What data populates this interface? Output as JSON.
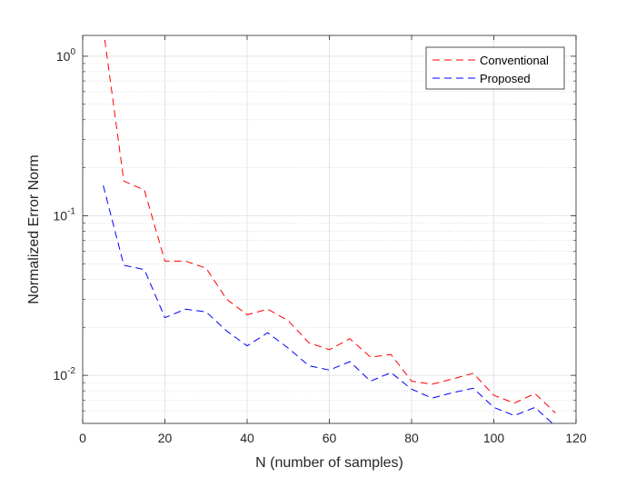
{
  "chart_data": {
    "type": "line",
    "title": "",
    "xlabel": "N (number of samples)",
    "ylabel": "Normalized Error Norm",
    "xlim": [
      0,
      120
    ],
    "ylim": [
      0.005,
      1.35
    ],
    "yscale": "log",
    "grid": true,
    "minor_grid": true,
    "legend_position": "top-right",
    "xticks": [
      0,
      20,
      40,
      60,
      80,
      100,
      120
    ],
    "xtick_labels": [
      "0",
      "20",
      "40",
      "60",
      "80",
      "100",
      "120"
    ],
    "yticks": [
      0.01,
      0.1,
      1
    ],
    "ytick_labels": [
      {
        "base": "10",
        "exp": "-2"
      },
      {
        "base": "10",
        "exp": "-1"
      },
      {
        "base": "10",
        "exp": "0"
      }
    ],
    "series": [
      {
        "name": "Conventional",
        "color": "#ff0000",
        "linestyle": "dashed",
        "x": [
          5,
          10,
          15,
          20,
          25,
          30,
          35,
          40,
          45,
          50,
          55,
          60,
          65,
          70,
          75,
          80,
          85,
          90,
          95,
          100,
          105,
          110,
          115
        ],
        "y": [
          1.5,
          0.165,
          0.145,
          0.052,
          0.052,
          0.047,
          0.03,
          0.024,
          0.026,
          0.022,
          0.016,
          0.0145,
          0.017,
          0.013,
          0.0135,
          0.0092,
          0.0088,
          0.0095,
          0.0103,
          0.0075,
          0.0067,
          0.0077,
          0.0058
        ]
      },
      {
        "name": "Proposed",
        "color": "#0000ff",
        "linestyle": "dashed",
        "x": [
          5,
          10,
          15,
          20,
          25,
          30,
          35,
          40,
          45,
          50,
          55,
          60,
          65,
          70,
          75,
          80,
          85,
          90,
          95,
          100,
          105,
          110,
          115
        ],
        "y": [
          0.155,
          0.049,
          0.046,
          0.023,
          0.026,
          0.025,
          0.019,
          0.0153,
          0.0185,
          0.0148,
          0.0115,
          0.0108,
          0.0122,
          0.0092,
          0.0104,
          0.0082,
          0.0072,
          0.0078,
          0.0083,
          0.0063,
          0.0056,
          0.0063,
          0.0048
        ]
      }
    ]
  }
}
